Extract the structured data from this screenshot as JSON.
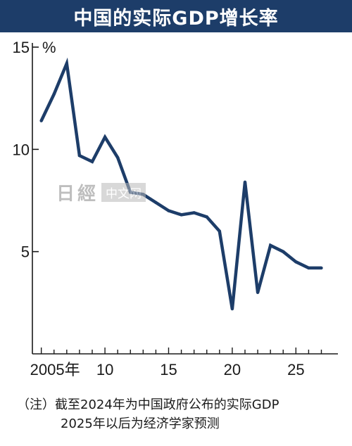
{
  "title": "中国的实际GDP增长率",
  "watermark": {
    "logo": "日經",
    "site": "中文网"
  },
  "note": {
    "line1": "（注）截至2024年为中国政府公布的实际GDP",
    "line2": "2025年以后为经济学家预测"
  },
  "colors": {
    "title_bg": "#1d3d69",
    "line": "#1d3d69"
  },
  "chart_data": {
    "type": "line",
    "title": "中国的实际GDP增长率",
    "ylabel": "%",
    "xlabel": "",
    "ylim": [
      0,
      15
    ],
    "xlim": [
      2004.3,
      2028.3
    ],
    "yticks": [
      5,
      10,
      15
    ],
    "ytick_labels": [
      "5",
      "10",
      "15"
    ],
    "xticks": [
      2005,
      2010,
      2015,
      2020,
      2025
    ],
    "xtick_labels": [
      "2005年",
      "10",
      "15",
      "20",
      "25"
    ],
    "grid": false,
    "series": [
      {
        "x": [
          2005,
          2006,
          2007,
          2008,
          2009,
          2010,
          2011,
          2012,
          2013,
          2014,
          2015,
          2016,
          2017,
          2018,
          2019,
          2020,
          2021,
          2022,
          2023,
          2024,
          2025,
          2026,
          2027
        ],
        "values": [
          11.4,
          12.7,
          14.2,
          9.7,
          9.4,
          10.6,
          9.6,
          7.9,
          7.8,
          7.4,
          7.0,
          6.8,
          6.9,
          6.7,
          6.0,
          2.2,
          8.4,
          3.0,
          5.3,
          5.0,
          4.5,
          4.2,
          4.2
        ]
      }
    ]
  }
}
